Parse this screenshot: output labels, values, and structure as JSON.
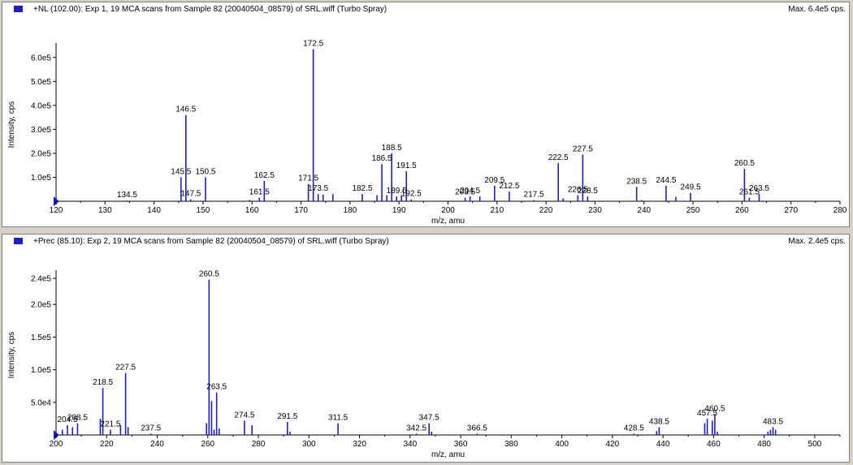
{
  "panels": [
    {
      "title": "+NL (102.00): Exp 1, 19 MCA scans from Sample 82 (20040504_08579) of SRL.wiff (Turbo Spray)",
      "max_label": "Max. 6.4e5 cps.",
      "accent": "#1c1cd0"
    },
    {
      "title": "+Prec (85.10): Exp 2, 19 MCA scans from Sample 82 (20040504_08579) of SRL.wiff (Turbo Spray)",
      "max_label": "Max. 2.4e5 cps.",
      "accent": "#1c1cd0"
    }
  ],
  "chart_data": [
    {
      "type": "bar",
      "title": "+NL (102.00): Exp 1, 19 MCA scans from Sample 82 (20040504_08579) of SRL.wiff (Turbo Spray)",
      "xlabel": "m/z, amu",
      "ylabel": "Intensity, cps",
      "xlim": [
        120,
        280
      ],
      "ylim": [
        0,
        640000
      ],
      "x_ticks": [
        "120",
        "130",
        "140",
        "150",
        "160",
        "170",
        "180",
        "190",
        "200",
        "210",
        "220",
        "230",
        "240",
        "250",
        "260",
        "270",
        "280"
      ],
      "y_ticks": [
        {
          "v": 100000,
          "label": "1.0e5"
        },
        {
          "v": 200000,
          "label": "2.0e5"
        },
        {
          "v": 300000,
          "label": "3.0e5"
        },
        {
          "v": 400000,
          "label": "4.0e5"
        },
        {
          "v": 500000,
          "label": "5.0e5"
        },
        {
          "v": 600000,
          "label": "6.0e5"
        }
      ],
      "peaks": [
        {
          "x": 134.5,
          "y": 3000,
          "label": "134.5"
        },
        {
          "x": 145.5,
          "y": 100000,
          "label": "145.5"
        },
        {
          "x": 146.5,
          "y": 360000,
          "label": "146.5"
        },
        {
          "x": 147.5,
          "y": 8000,
          "label": "147.5"
        },
        {
          "x": 150.5,
          "y": 100000,
          "label": "150.5"
        },
        {
          "x": 159.5,
          "y": 5000
        },
        {
          "x": 161.5,
          "y": 15000,
          "label": "161.5"
        },
        {
          "x": 162.5,
          "y": 85000,
          "label": "162.5"
        },
        {
          "x": 171.5,
          "y": 72000,
          "label": "171.5"
        },
        {
          "x": 172.5,
          "y": 635000,
          "label": "172.5"
        },
        {
          "x": 173.5,
          "y": 30000,
          "label": "173.5"
        },
        {
          "x": 174.5,
          "y": 28000
        },
        {
          "x": 176.5,
          "y": 30000
        },
        {
          "x": 182.5,
          "y": 30000,
          "label": "182.5"
        },
        {
          "x": 185.5,
          "y": 25000
        },
        {
          "x": 186.5,
          "y": 155000,
          "label": "186.5"
        },
        {
          "x": 187.5,
          "y": 25000
        },
        {
          "x": 188.5,
          "y": 200000,
          "label": "188.5"
        },
        {
          "x": 189.5,
          "y": 20000,
          "label": "189.5"
        },
        {
          "x": 190.5,
          "y": 25000
        },
        {
          "x": 191.5,
          "y": 125000,
          "label": "191.5"
        },
        {
          "x": 192.5,
          "y": 8000,
          "label": "192.5"
        },
        {
          "x": 203.5,
          "y": 15000,
          "label": "203.5"
        },
        {
          "x": 204.5,
          "y": 20000,
          "label": "204.5"
        },
        {
          "x": 206.5,
          "y": 20000
        },
        {
          "x": 209.5,
          "y": 65000,
          "label": "209.5"
        },
        {
          "x": 212.5,
          "y": 40000,
          "label": "212.5"
        },
        {
          "x": 217.5,
          "y": 5000,
          "label": "217.5"
        },
        {
          "x": 222.5,
          "y": 160000,
          "label": "222.5"
        },
        {
          "x": 223.5,
          "y": 12000
        },
        {
          "x": 226.5,
          "y": 25000,
          "label": "226.5"
        },
        {
          "x": 227.5,
          "y": 195000,
          "label": "227.5"
        },
        {
          "x": 228.5,
          "y": 20000,
          "label": "228.5"
        },
        {
          "x": 238.5,
          "y": 60000,
          "label": "238.5"
        },
        {
          "x": 239.5,
          "y": 5000
        },
        {
          "x": 244.5,
          "y": 65000,
          "label": "244.5"
        },
        {
          "x": 246.5,
          "y": 18000
        },
        {
          "x": 249.5,
          "y": 35000,
          "label": "249.5"
        },
        {
          "x": 260.5,
          "y": 135000,
          "label": "260.5"
        },
        {
          "x": 261.5,
          "y": 15000,
          "label": "261.5"
        },
        {
          "x": 263.5,
          "y": 30000,
          "label": "263.5"
        }
      ]
    },
    {
      "type": "bar",
      "title": "+Prec (85.10): Exp 2, 19 MCA scans from Sample 82 (20040504_08579) of SRL.wiff (Turbo Spray)",
      "xlabel": "m/z, amu",
      "ylabel": "Intensity, cps",
      "xlim": [
        200,
        510
      ],
      "ylim": [
        0,
        245000
      ],
      "x_ticks": [
        "200",
        "220",
        "240",
        "260",
        "280",
        "300",
        "320",
        "340",
        "360",
        "380",
        "400",
        "420",
        "440",
        "460",
        "480",
        "500"
      ],
      "y_ticks": [
        {
          "v": 50000,
          "label": "5.0e4"
        },
        {
          "v": 100000,
          "label": "1.0e5"
        },
        {
          "v": 150000,
          "label": "1.5e5"
        },
        {
          "v": 200000,
          "label": "2.0e5"
        },
        {
          "v": 240000,
          "label": "2.4e5"
        }
      ],
      "peaks": [
        {
          "x": 202.5,
          "y": 8000
        },
        {
          "x": 204.5,
          "y": 15000,
          "label": "204.5"
        },
        {
          "x": 206.5,
          "y": 12000
        },
        {
          "x": 208.5,
          "y": 18000,
          "label": "208.5"
        },
        {
          "x": 217.5,
          "y": 25000
        },
        {
          "x": 218.5,
          "y": 72000,
          "label": "218.5"
        },
        {
          "x": 221.5,
          "y": 8000,
          "label": "221.5"
        },
        {
          "x": 225.5,
          "y": 15000
        },
        {
          "x": 227.5,
          "y": 95000,
          "label": "227.5"
        },
        {
          "x": 228.5,
          "y": 12000
        },
        {
          "x": 237.5,
          "y": 2000,
          "label": "237.5"
        },
        {
          "x": 259.5,
          "y": 18000
        },
        {
          "x": 260.5,
          "y": 238000,
          "label": "260.5"
        },
        {
          "x": 261.5,
          "y": 52000
        },
        {
          "x": 262.5,
          "y": 8000
        },
        {
          "x": 263.5,
          "y": 65000,
          "label": "263.5"
        },
        {
          "x": 264.5,
          "y": 10000
        },
        {
          "x": 274.5,
          "y": 22000,
          "label": "274.5"
        },
        {
          "x": 277.5,
          "y": 15000
        },
        {
          "x": 291.5,
          "y": 20000,
          "label": "291.5"
        },
        {
          "x": 292.5,
          "y": 5000
        },
        {
          "x": 311.5,
          "y": 18000,
          "label": "311.5"
        },
        {
          "x": 342.5,
          "y": 2000,
          "label": "342.5"
        },
        {
          "x": 347.5,
          "y": 18000,
          "label": "347.5"
        },
        {
          "x": 348.5,
          "y": 5000
        },
        {
          "x": 366.5,
          "y": 2000,
          "label": "366.5"
        },
        {
          "x": 428.5,
          "y": 2000,
          "label": "428.5"
        },
        {
          "x": 437.5,
          "y": 6000
        },
        {
          "x": 438.5,
          "y": 12000,
          "label": "438.5"
        },
        {
          "x": 456.5,
          "y": 18000
        },
        {
          "x": 457.5,
          "y": 25000,
          "label": "457.5"
        },
        {
          "x": 459.5,
          "y": 22000
        },
        {
          "x": 460.5,
          "y": 32000,
          "label": "460.5"
        },
        {
          "x": 461.5,
          "y": 5000
        },
        {
          "x": 481.5,
          "y": 5000
        },
        {
          "x": 482.5,
          "y": 8000
        },
        {
          "x": 483.5,
          "y": 12000,
          "label": "483.5"
        },
        {
          "x": 484.5,
          "y": 8000
        }
      ]
    }
  ]
}
